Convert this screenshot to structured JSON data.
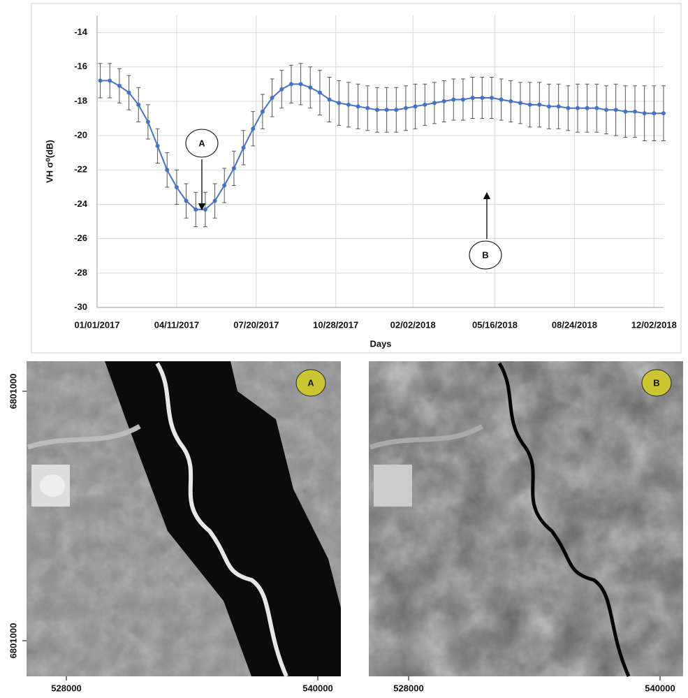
{
  "chart_data": {
    "type": "line",
    "y_label": "VH σ⁰(dB)",
    "x_label": "Days",
    "x": [
      "2017-01-05",
      "2017-01-17",
      "2017-01-29",
      "2017-02-10",
      "2017-02-22",
      "2017-03-06",
      "2017-03-18",
      "2017-03-30",
      "2017-04-11",
      "2017-04-23",
      "2017-05-05",
      "2017-05-17",
      "2017-05-29",
      "2017-06-10",
      "2017-06-22",
      "2017-07-04",
      "2017-07-16",
      "2017-07-28",
      "2017-08-09",
      "2017-08-21",
      "2017-09-02",
      "2017-09-14",
      "2017-09-26",
      "2017-10-08",
      "2017-10-20",
      "2017-11-01",
      "2017-11-13",
      "2017-11-25",
      "2017-12-07",
      "2017-12-19",
      "2017-12-31",
      "2018-01-12",
      "2018-01-24",
      "2018-02-05",
      "2018-02-17",
      "2018-03-01",
      "2018-03-13",
      "2018-03-25",
      "2018-04-06",
      "2018-04-18",
      "2018-04-30",
      "2018-05-12",
      "2018-05-24",
      "2018-06-05",
      "2018-06-17",
      "2018-06-29",
      "2018-07-11",
      "2018-07-23",
      "2018-08-04",
      "2018-08-16",
      "2018-08-28",
      "2018-09-09",
      "2018-09-21",
      "2018-10-03",
      "2018-10-15",
      "2018-10-27",
      "2018-11-08",
      "2018-11-20",
      "2018-12-02",
      "2018-12-14"
    ],
    "series": [
      {
        "color": "#4472c4",
        "values": [
          -16.8,
          -16.8,
          -17.1,
          -17.5,
          -18.2,
          -19.2,
          -20.6,
          -22.0,
          -23.0,
          -23.8,
          -24.3,
          -24.3,
          -23.8,
          -22.9,
          -21.9,
          -20.7,
          -19.6,
          -18.6,
          -17.8,
          -17.3,
          -17.0,
          -17.0,
          -17.2,
          -17.5,
          -17.9,
          -18.1,
          -18.2,
          -18.3,
          -18.4,
          -18.5,
          -18.5,
          -18.5,
          -18.4,
          -18.3,
          -18.2,
          -18.1,
          -18.0,
          -17.9,
          -17.9,
          -17.8,
          -17.8,
          -17.8,
          -17.9,
          -18.0,
          -18.1,
          -18.2,
          -18.2,
          -18.3,
          -18.3,
          -18.4,
          -18.4,
          -18.4,
          -18.4,
          -18.5,
          -18.5,
          -18.6,
          -18.6,
          -18.7,
          -18.7,
          -18.7
        ],
        "errors": [
          1.0,
          1.0,
          1.0,
          1.0,
          1.0,
          1.0,
          1.0,
          1.0,
          1.0,
          1.0,
          1.0,
          1.0,
          1.0,
          1.0,
          1.0,
          1.0,
          1.0,
          1.0,
          1.1,
          1.1,
          1.1,
          1.2,
          1.2,
          1.3,
          1.3,
          1.3,
          1.3,
          1.3,
          1.3,
          1.3,
          1.3,
          1.3,
          1.3,
          1.3,
          1.2,
          1.2,
          1.2,
          1.2,
          1.2,
          1.2,
          1.2,
          1.2,
          1.2,
          1.2,
          1.2,
          1.3,
          1.3,
          1.3,
          1.3,
          1.3,
          1.4,
          1.4,
          1.4,
          1.4,
          1.5,
          1.5,
          1.5,
          1.6,
          1.6,
          1.6
        ]
      }
    ],
    "xlim": [
      "2017-01-01",
      "2018-12-14"
    ],
    "xticks": [
      {
        "value": "2017-01-01",
        "label": "01/01/2017"
      },
      {
        "value": "2017-04-11",
        "label": "04/11/2017"
      },
      {
        "value": "2017-07-20",
        "label": "07/20/2017"
      },
      {
        "value": "2017-10-28",
        "label": "10/28/2017"
      },
      {
        "value": "2018-02-02",
        "label": "02/02/2018"
      },
      {
        "value": "2018-05-16",
        "label": "05/16/2018"
      },
      {
        "value": "2018-08-24",
        "label": "08/24/2018"
      },
      {
        "value": "2018-12-02",
        "label": "12/02/2018"
      }
    ],
    "ylim": [
      -30,
      -13
    ],
    "yticks": [
      -30,
      -28,
      -26,
      -24,
      -22,
      -20,
      -18,
      -16,
      -14
    ],
    "grid": true,
    "annotations": [
      {
        "text": "A"
      },
      {
        "text": "B"
      }
    ]
  },
  "panels": [
    {
      "label": "A",
      "y_ticks": [
        "6801000",
        "6801000"
      ],
      "x_ticks": [
        "528000",
        "540000"
      ]
    },
    {
      "label": "B",
      "x_ticks": [
        "528000",
        "540000"
      ]
    }
  ]
}
